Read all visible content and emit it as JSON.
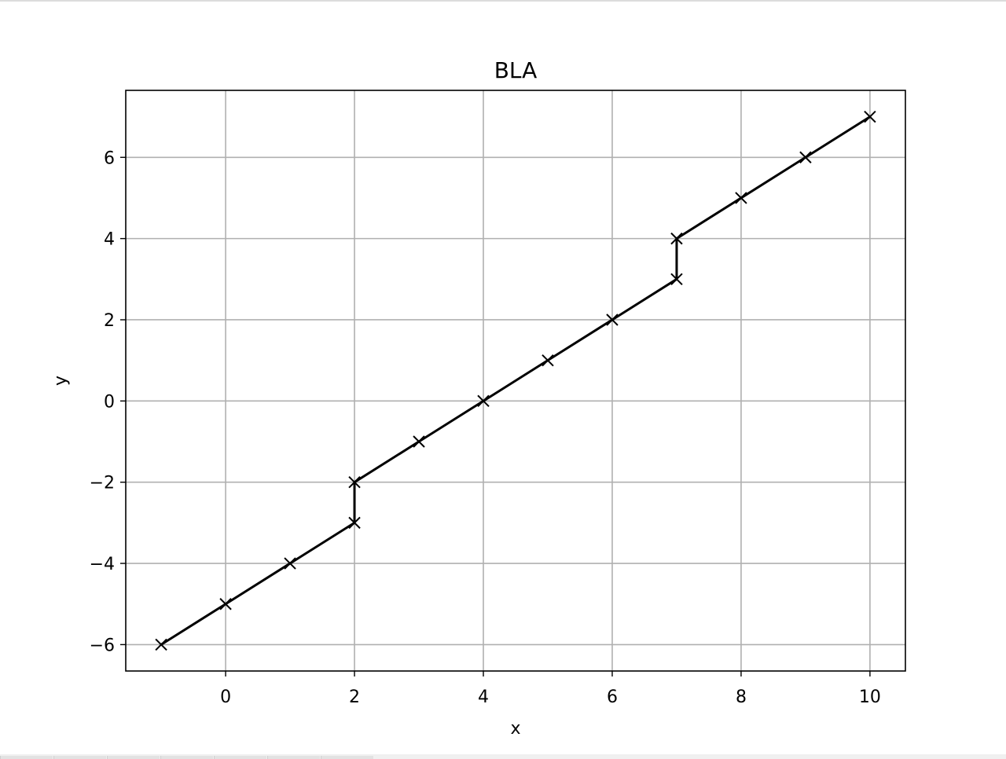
{
  "chart_data": {
    "type": "line",
    "title": "BLA",
    "xlabel": "x",
    "ylabel": "y",
    "xlim": [
      -1.55,
      10.55
    ],
    "ylim": [
      -6.65,
      7.65
    ],
    "grid": true,
    "xticks": [
      0,
      2,
      4,
      6,
      8,
      10
    ],
    "yticks": [
      -6,
      -4,
      -2,
      0,
      2,
      4,
      6
    ],
    "xtick_labels": [
      "0",
      "2",
      "4",
      "6",
      "8",
      "10"
    ],
    "ytick_labels": [
      "−6",
      "−4",
      "−2",
      "0",
      "2",
      "4",
      "6"
    ],
    "series": [
      {
        "color": "#000000",
        "marker": "x",
        "x": [
          -1,
          0,
          1,
          2,
          2,
          3,
          4,
          5,
          6,
          7,
          7,
          8,
          9,
          10
        ],
        "y": [
          -6,
          -5,
          -4,
          -3,
          -2,
          -1,
          0,
          1,
          2,
          3,
          4,
          5,
          6,
          7
        ]
      }
    ],
    "grid_color": "#b0b0b0"
  }
}
